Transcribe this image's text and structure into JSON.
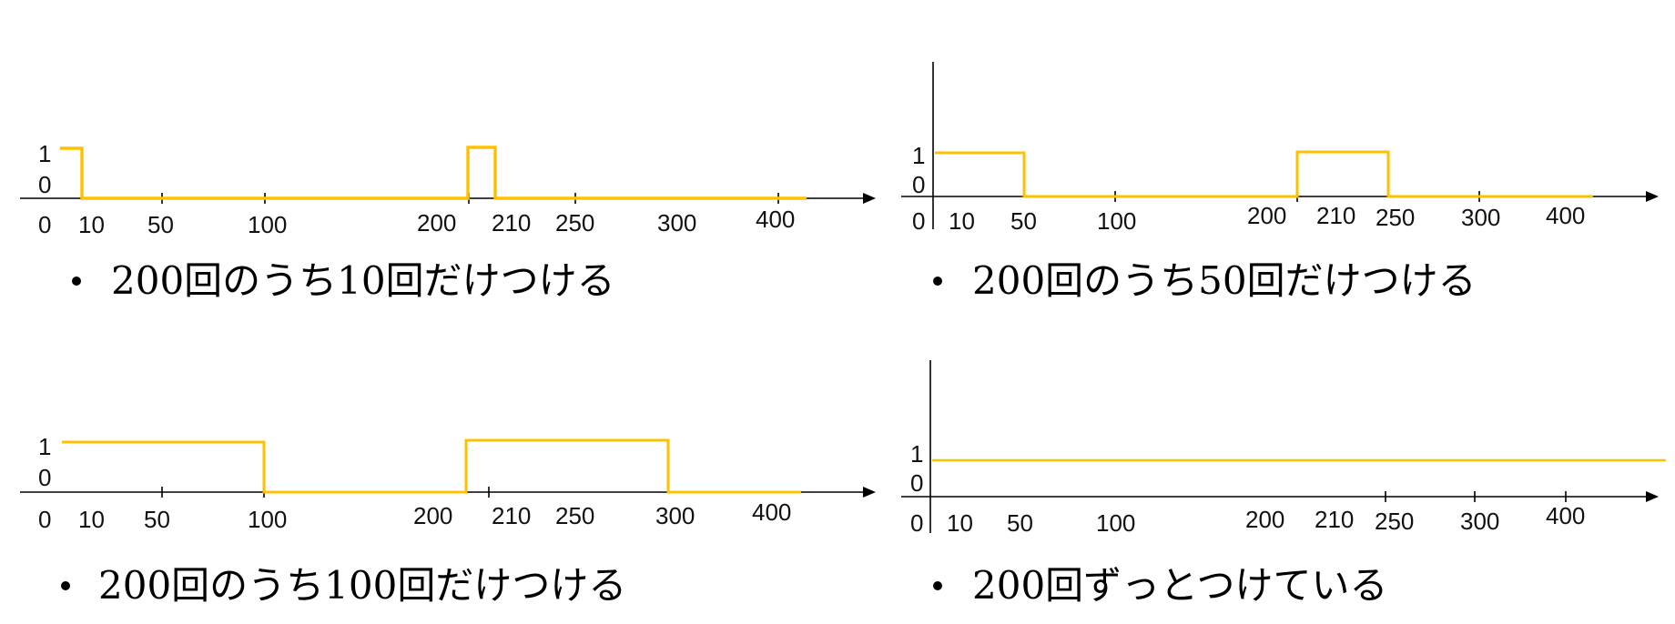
{
  "colors": {
    "signal": "#FFC000",
    "axis": "#000000",
    "text": "#111111"
  },
  "panels": [
    {
      "id": "duty-10",
      "caption": "200回のうち10回だけつける",
      "y_labels": [
        "1",
        "0"
      ],
      "x_labels": [
        "0",
        "10",
        "50",
        "100",
        "200",
        "210",
        "250",
        "300",
        "400"
      ],
      "signal": [
        [
          0,
          1
        ],
        [
          10,
          1
        ],
        [
          10,
          0
        ],
        [
          200,
          0
        ],
        [
          200,
          1
        ],
        [
          210,
          1
        ],
        [
          210,
          0
        ],
        [
          400,
          0
        ]
      ],
      "has_y_axis": false
    },
    {
      "id": "duty-50",
      "caption": "200回のうち50回だけつける",
      "y_labels": [
        "1",
        "0"
      ],
      "x_labels": [
        "0",
        "10",
        "50",
        "100",
        "200",
        "210",
        "250",
        "300",
        "400"
      ],
      "signal": [
        [
          0,
          1
        ],
        [
          50,
          1
        ],
        [
          50,
          0
        ],
        [
          200,
          0
        ],
        [
          200,
          1
        ],
        [
          250,
          1
        ],
        [
          250,
          0
        ],
        [
          400,
          0
        ]
      ],
      "has_y_axis": true
    },
    {
      "id": "duty-100",
      "caption": "200回のうち100回だけつける",
      "y_labels": [
        "1",
        "0"
      ],
      "x_labels": [
        "0",
        "10",
        "50",
        "100",
        "200",
        "210",
        "250",
        "300",
        "400"
      ],
      "signal": [
        [
          0,
          1
        ],
        [
          100,
          1
        ],
        [
          100,
          0
        ],
        [
          200,
          0
        ],
        [
          200,
          1
        ],
        [
          300,
          1
        ],
        [
          300,
          0
        ],
        [
          400,
          0
        ]
      ],
      "has_y_axis": false
    },
    {
      "id": "duty-200",
      "caption": "200回ずっとつけている",
      "y_labels": [
        "1",
        "0"
      ],
      "x_labels": [
        "0",
        "10",
        "50",
        "100",
        "200",
        "210",
        "250",
        "300",
        "400"
      ],
      "signal": [
        [
          0,
          1
        ],
        [
          400,
          1
        ]
      ],
      "has_y_axis": true
    }
  ]
}
